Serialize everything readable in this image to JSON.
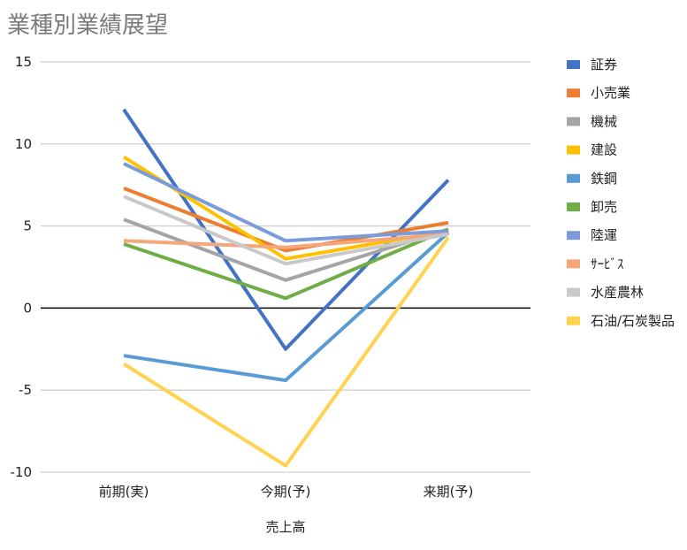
{
  "chart_data": {
    "type": "line",
    "title": "業種別業績展望",
    "xlabel": "売上高",
    "ylabel": "",
    "categories": [
      "前期(実)",
      "今期(予)",
      "来期(予)"
    ],
    "ylim": [
      -10,
      15
    ],
    "yticks": [
      15,
      10,
      5,
      0,
      -5,
      -10
    ],
    "ytick_labels": [
      "15",
      "10",
      "5",
      "0",
      "-5",
      "-10"
    ],
    "grid": true,
    "legend_position": "right",
    "series": [
      {
        "name": "証券",
        "color": "#4472C4",
        "values": [
          12.1,
          -2.5,
          7.8
        ]
      },
      {
        "name": "小売業",
        "color": "#ED7D31",
        "values": [
          7.3,
          3.5,
          5.2
        ]
      },
      {
        "name": "機械",
        "color": "#A5A5A5",
        "values": [
          5.4,
          1.7,
          4.8
        ]
      },
      {
        "name": "建設",
        "color": "#FFC000",
        "values": [
          9.2,
          3.0,
          4.7
        ]
      },
      {
        "name": "鉄鋼",
        "color": "#5B9BD5",
        "values": [
          -2.9,
          -4.4,
          4.6
        ]
      },
      {
        "name": "卸売",
        "color": "#70AD47",
        "values": [
          3.9,
          0.6,
          4.8
        ]
      },
      {
        "name": "陸運",
        "color": "#7C9BDA",
        "values": [
          8.8,
          4.1,
          4.7
        ]
      },
      {
        "name": "ｻｰﾋﾞｽ",
        "color": "#F4A77A",
        "values": [
          4.1,
          3.7,
          4.5
        ]
      },
      {
        "name": "水産農林",
        "color": "#C9C9C9",
        "values": [
          6.8,
          2.7,
          4.5
        ]
      },
      {
        "name": "石油/石炭製品",
        "color": "#FFD34F",
        "values": [
          -3.4,
          -9.6,
          4.3
        ]
      }
    ]
  }
}
